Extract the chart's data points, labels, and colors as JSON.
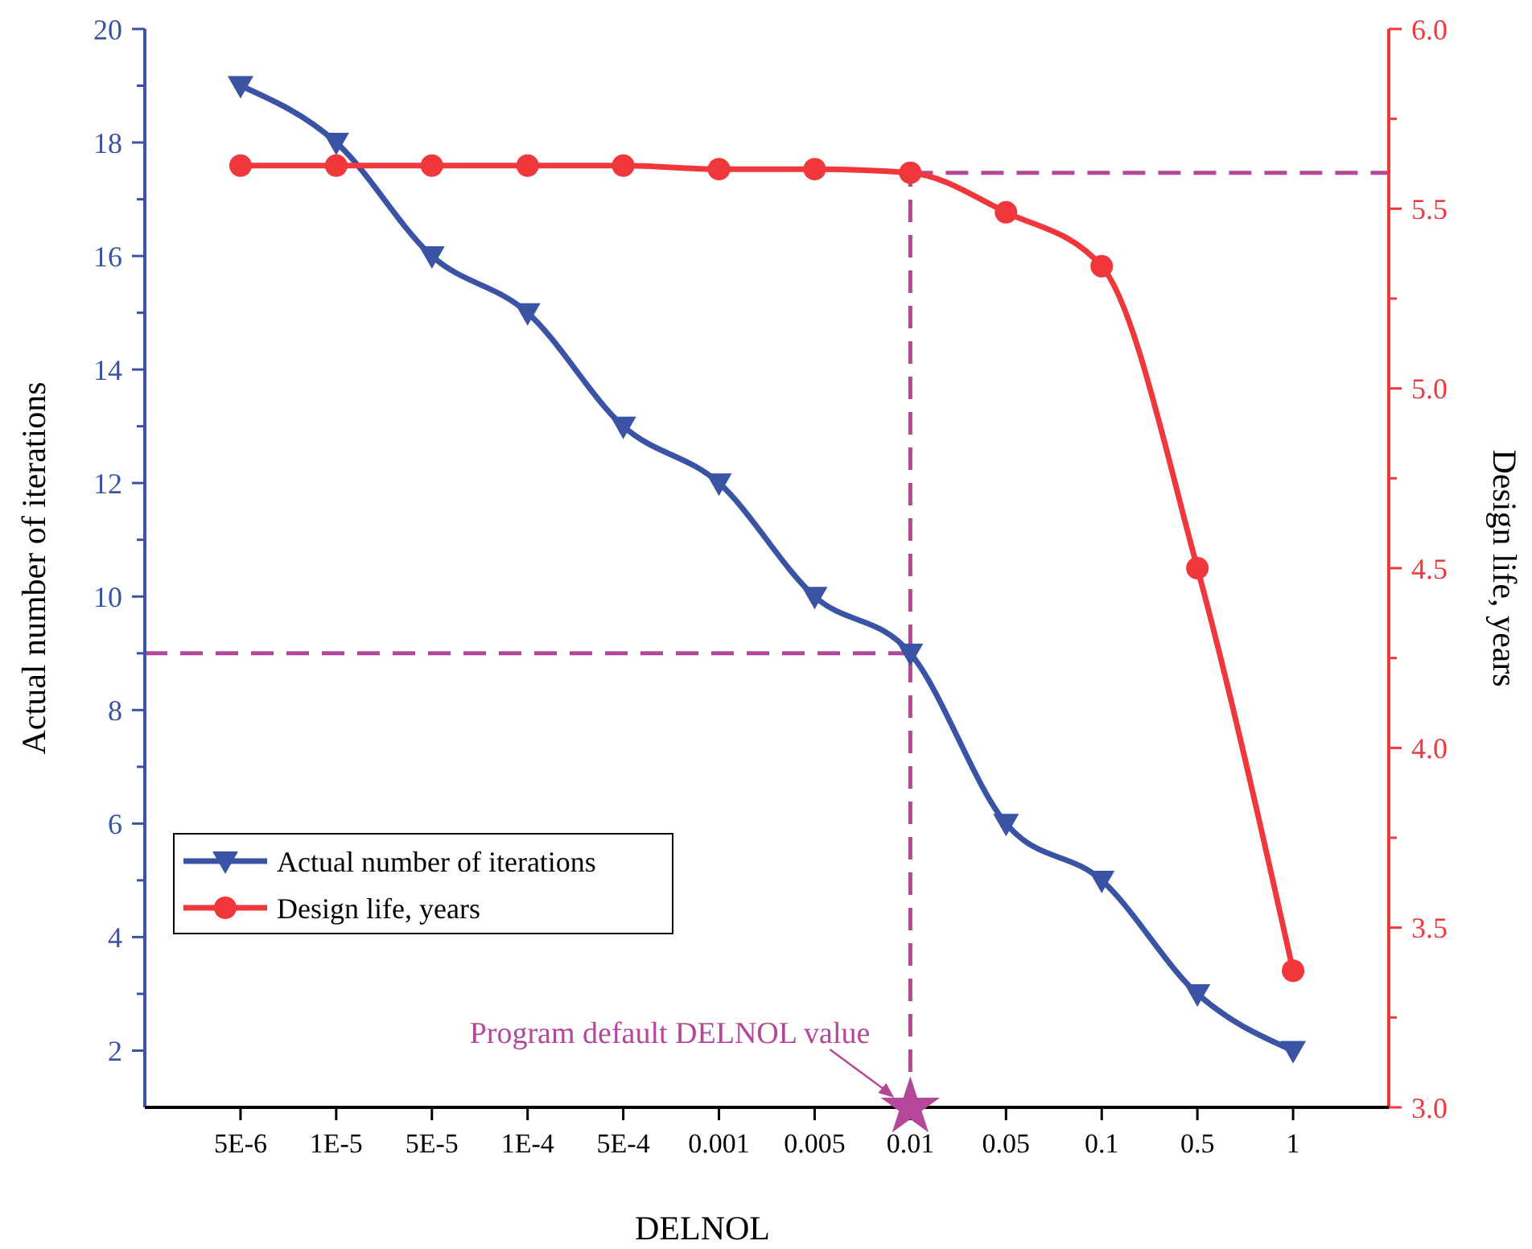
{
  "chart_data": {
    "type": "line",
    "xlabel": "DELNOL",
    "ylabel": "Actual number of iterations",
    "y2label": "Design life, years",
    "categories": [
      "5E-6",
      "1E-5",
      "5E-5",
      "1E-4",
      "5E-4",
      "0.001",
      "0.005",
      "0.01",
      "0.05",
      "0.1",
      "0.5",
      "1"
    ],
    "series": [
      {
        "name": "Actual number of iterations",
        "color": "#3a53a4",
        "marker": "triangle",
        "values": [
          19,
          18,
          16,
          15,
          13,
          12,
          10,
          9,
          6,
          5,
          3,
          2
        ]
      },
      {
        "name": "Design life, years",
        "color": "#f0373b",
        "marker": "circle",
        "axis": "y2",
        "values": [
          5.62,
          5.62,
          5.62,
          5.62,
          5.62,
          5.61,
          5.61,
          5.6,
          5.49,
          5.34,
          4.5,
          3.38
        ]
      }
    ],
    "ylim": [
      1,
      20
    ],
    "yticks": [
      2,
      {
        "value": 3,
        "label": null
      },
      4,
      {
        "value": 5,
        "label": null
      },
      6,
      {
        "value": 7,
        "label": null
      },
      8,
      {
        "value": 9,
        "label": null
      },
      10,
      {
        "value": 11,
        "label": null
      },
      12,
      {
        "value": 13,
        "label": null
      },
      14,
      {
        "value": 15,
        "label": null
      },
      16,
      {
        "value": 17,
        "label": null
      },
      18,
      {
        "value": 19,
        "label": null
      },
      20
    ],
    "y2lim": [
      3,
      6
    ],
    "y2ticks": [
      {
        "value": 3,
        "label": "3.0"
      },
      {
        "value": 3.25,
        "label": null
      },
      {
        "value": 3.5,
        "label": "3.5"
      },
      {
        "value": 3.75,
        "label": null
      },
      {
        "value": 4,
        "label": "4.0"
      },
      {
        "value": 4.25,
        "label": null
      },
      {
        "value": 4.5,
        "label": "4.5"
      },
      {
        "value": 4.75,
        "label": null
      },
      {
        "value": 5,
        "label": "5.0"
      },
      {
        "value": 5.25,
        "label": null
      },
      {
        "value": 5.5,
        "label": "5.5"
      },
      {
        "value": 5.75,
        "label": null
      },
      {
        "value": 6,
        "label": "6.0"
      }
    ],
    "ref_lines": [
      {
        "axis": "x",
        "value": "0.01",
        "color": "#b5479b",
        "line_style": "dashed"
      },
      {
        "axis": "y",
        "value": 9,
        "color": "#b5479b",
        "line_style": "dashed"
      },
      {
        "axis": "y2",
        "value": 5.6,
        "color": "#b5479b",
        "line_style": "dashed"
      }
    ],
    "annotations": [
      {
        "text": "Program default DELNOL value",
        "x": "0.01",
        "y": 1
      }
    ],
    "legend": "left",
    "grid": false,
    "line_style": "solid"
  }
}
